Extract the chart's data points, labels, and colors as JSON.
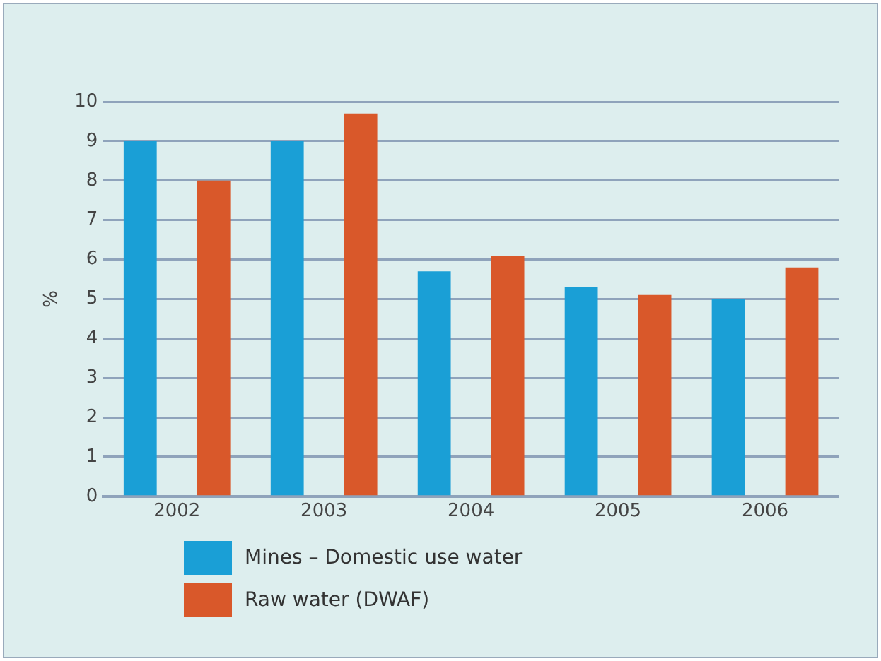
{
  "chart_data": {
    "type": "bar",
    "ylabel": "%",
    "categories": [
      "2002",
      "2003",
      "2004",
      "2005",
      "2006"
    ],
    "series": [
      {
        "name": "Mines – Domestic use water",
        "color": "#1a9fd6",
        "values": [
          9.0,
          9.0,
          5.7,
          5.3,
          5.0
        ]
      },
      {
        "name": "Raw water (DWAF)",
        "color": "#d9582a",
        "values": [
          8.0,
          9.7,
          6.1,
          5.1,
          5.8
        ]
      }
    ],
    "ylim": [
      0,
      10
    ],
    "yticks": [
      0,
      1,
      2,
      3,
      4,
      5,
      6,
      7,
      8,
      9,
      10
    ],
    "grid": "y",
    "legend": "bottom left"
  }
}
